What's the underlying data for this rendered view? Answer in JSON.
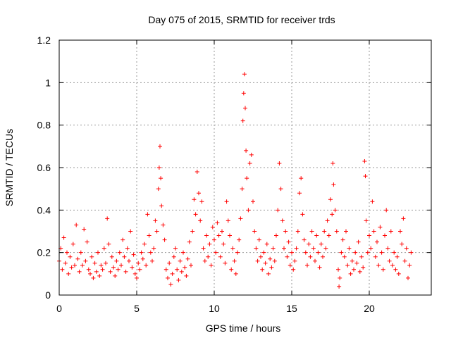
{
  "chart_data": {
    "type": "scatter",
    "title": "Day 075 of 2015, SRMTID for receiver trds",
    "xlabel": "GPS time / hours",
    "ylabel": "SRMTID / TECUs",
    "xlim": [
      0,
      24
    ],
    "ylim": [
      0,
      1.2
    ],
    "x_ticks": [
      0,
      5,
      10,
      15,
      20
    ],
    "x_tick_labels": [
      "0",
      "5",
      "10",
      "15",
      "20"
    ],
    "y_ticks": [
      0,
      0.2,
      0.4,
      0.6,
      0.8,
      1.0,
      1.2
    ],
    "y_tick_labels": [
      "0",
      "0.2",
      "0.4",
      "0.6",
      "0.8",
      "1",
      "1.2"
    ],
    "grid": true,
    "marker": "+",
    "color": "#ff0000",
    "series": [
      {
        "name": "SRMTID",
        "points": [
          [
            0.0,
            0.16
          ],
          [
            0.1,
            0.22
          ],
          [
            0.2,
            0.12
          ],
          [
            0.3,
            0.27
          ],
          [
            0.4,
            0.15
          ],
          [
            0.5,
            0.2
          ],
          [
            0.6,
            0.1
          ],
          [
            0.7,
            0.18
          ],
          [
            0.8,
            0.13
          ],
          [
            0.9,
            0.24
          ],
          [
            1.0,
            0.14
          ],
          [
            1.1,
            0.33
          ],
          [
            1.2,
            0.17
          ],
          [
            1.3,
            0.11
          ],
          [
            1.4,
            0.2
          ],
          [
            1.5,
            0.14
          ],
          [
            1.6,
            0.31
          ],
          [
            1.7,
            0.16
          ],
          [
            1.8,
            0.25
          ],
          [
            1.9,
            0.12
          ],
          [
            2.0,
            0.1
          ],
          [
            2.1,
            0.18
          ],
          [
            2.2,
            0.08
          ],
          [
            2.3,
            0.15
          ],
          [
            2.4,
            0.11
          ],
          [
            2.5,
            0.2
          ],
          [
            2.6,
            0.09
          ],
          [
            2.7,
            0.14
          ],
          [
            2.8,
            0.12
          ],
          [
            2.9,
            0.22
          ],
          [
            3.0,
            0.15
          ],
          [
            3.1,
            0.36
          ],
          [
            3.2,
            0.24
          ],
          [
            3.3,
            0.11
          ],
          [
            3.4,
            0.18
          ],
          [
            3.5,
            0.13
          ],
          [
            3.6,
            0.09
          ],
          [
            3.7,
            0.16
          ],
          [
            3.8,
            0.12
          ],
          [
            3.9,
            0.2
          ],
          [
            4.0,
            0.14
          ],
          [
            4.1,
            0.26
          ],
          [
            4.2,
            0.18
          ],
          [
            4.3,
            0.11
          ],
          [
            4.4,
            0.22
          ],
          [
            4.5,
            0.16
          ],
          [
            4.6,
            0.3
          ],
          [
            4.7,
            0.13
          ],
          [
            4.8,
            0.19
          ],
          [
            4.9,
            0.1
          ],
          [
            5.0,
            0.08
          ],
          [
            5.1,
            0.15
          ],
          [
            5.2,
            0.12
          ],
          [
            5.3,
            0.2
          ],
          [
            5.4,
            0.17
          ],
          [
            5.5,
            0.24
          ],
          [
            5.6,
            0.14
          ],
          [
            5.7,
            0.38
          ],
          [
            5.8,
            0.28
          ],
          [
            5.9,
            0.2
          ],
          [
            6.0,
            0.16
          ],
          [
            6.1,
            0.22
          ],
          [
            6.2,
            0.35
          ],
          [
            6.3,
            0.3
          ],
          [
            6.4,
            0.5
          ],
          [
            6.45,
            0.6
          ],
          [
            6.5,
            0.7
          ],
          [
            6.55,
            0.55
          ],
          [
            6.6,
            0.42
          ],
          [
            6.7,
            0.33
          ],
          [
            6.8,
            0.26
          ],
          [
            6.9,
            0.12
          ],
          [
            7.0,
            0.08
          ],
          [
            7.1,
            0.15
          ],
          [
            7.2,
            0.05
          ],
          [
            7.3,
            0.1
          ],
          [
            7.4,
            0.18
          ],
          [
            7.5,
            0.22
          ],
          [
            7.6,
            0.12
          ],
          [
            7.7,
            0.07
          ],
          [
            7.8,
            0.16
          ],
          [
            7.9,
            0.11
          ],
          [
            8.0,
            0.2
          ],
          [
            8.1,
            0.13
          ],
          [
            8.2,
            0.09
          ],
          [
            8.3,
            0.17
          ],
          [
            8.4,
            0.25
          ],
          [
            8.5,
            0.14
          ],
          [
            8.6,
            0.3
          ],
          [
            8.7,
            0.45
          ],
          [
            8.8,
            0.38
          ],
          [
            8.9,
            0.58
          ],
          [
            9.0,
            0.48
          ],
          [
            9.1,
            0.35
          ],
          [
            9.2,
            0.44
          ],
          [
            9.3,
            0.22
          ],
          [
            9.4,
            0.16
          ],
          [
            9.5,
            0.28
          ],
          [
            9.6,
            0.18
          ],
          [
            9.7,
            0.24
          ],
          [
            9.8,
            0.14
          ],
          [
            9.9,
            0.32
          ],
          [
            10.0,
            0.26
          ],
          [
            10.1,
            0.2
          ],
          [
            10.2,
            0.34
          ],
          [
            10.3,
            0.28
          ],
          [
            10.4,
            0.18
          ],
          [
            10.5,
            0.3
          ],
          [
            10.6,
            0.24
          ],
          [
            10.7,
            0.15
          ],
          [
            10.8,
            0.44
          ],
          [
            10.9,
            0.35
          ],
          [
            11.0,
            0.28
          ],
          [
            11.1,
            0.12
          ],
          [
            11.2,
            0.22
          ],
          [
            11.3,
            0.16
          ],
          [
            11.4,
            0.1
          ],
          [
            11.5,
            0.2
          ],
          [
            11.6,
            0.26
          ],
          [
            11.7,
            0.36
          ],
          [
            11.8,
            0.5
          ],
          [
            11.85,
            0.82
          ],
          [
            11.9,
            0.95
          ],
          [
            11.95,
            1.04
          ],
          [
            12.0,
            0.88
          ],
          [
            12.05,
            0.68
          ],
          [
            12.1,
            0.55
          ],
          [
            12.2,
            0.4
          ],
          [
            12.3,
            0.62
          ],
          [
            12.4,
            0.66
          ],
          [
            12.5,
            0.44
          ],
          [
            12.6,
            0.3
          ],
          [
            12.7,
            0.22
          ],
          [
            12.8,
            0.16
          ],
          [
            12.9,
            0.26
          ],
          [
            13.0,
            0.18
          ],
          [
            13.1,
            0.12
          ],
          [
            13.2,
            0.2
          ],
          [
            13.3,
            0.15
          ],
          [
            13.4,
            0.24
          ],
          [
            13.5,
            0.1
          ],
          [
            13.6,
            0.17
          ],
          [
            13.7,
            0.13
          ],
          [
            13.8,
            0.22
          ],
          [
            13.9,
            0.16
          ],
          [
            14.0,
            0.28
          ],
          [
            14.1,
            0.4
          ],
          [
            14.2,
            0.62
          ],
          [
            14.3,
            0.5
          ],
          [
            14.4,
            0.35
          ],
          [
            14.5,
            0.22
          ],
          [
            14.6,
            0.3
          ],
          [
            14.7,
            0.18
          ],
          [
            14.8,
            0.25
          ],
          [
            14.9,
            0.14
          ],
          [
            15.0,
            0.2
          ],
          [
            15.1,
            0.12
          ],
          [
            15.2,
            0.16
          ],
          [
            15.3,
            0.22
          ],
          [
            15.4,
            0.3
          ],
          [
            15.5,
            0.48
          ],
          [
            15.6,
            0.55
          ],
          [
            15.7,
            0.38
          ],
          [
            15.8,
            0.26
          ],
          [
            15.9,
            0.2
          ],
          [
            16.0,
            0.14
          ],
          [
            16.1,
            0.24
          ],
          [
            16.2,
            0.18
          ],
          [
            16.3,
            0.3
          ],
          [
            16.4,
            0.22
          ],
          [
            16.5,
            0.16
          ],
          [
            16.6,
            0.28
          ],
          [
            16.7,
            0.2
          ],
          [
            16.8,
            0.13
          ],
          [
            16.9,
            0.24
          ],
          [
            17.0,
            0.18
          ],
          [
            17.1,
            0.3
          ],
          [
            17.2,
            0.22
          ],
          [
            17.3,
            0.35
          ],
          [
            17.4,
            0.28
          ],
          [
            17.5,
            0.45
          ],
          [
            17.6,
            0.38
          ],
          [
            17.65,
            0.62
          ],
          [
            17.7,
            0.52
          ],
          [
            17.8,
            0.4
          ],
          [
            17.9,
            0.3
          ],
          [
            18.0,
            0.12
          ],
          [
            18.05,
            0.04
          ],
          [
            18.1,
            0.08
          ],
          [
            18.2,
            0.2
          ],
          [
            18.3,
            0.26
          ],
          [
            18.4,
            0.18
          ],
          [
            18.5,
            0.3
          ],
          [
            18.6,
            0.14
          ],
          [
            18.7,
            0.22
          ],
          [
            18.8,
            0.1
          ],
          [
            18.9,
            0.16
          ],
          [
            19.0,
            0.12
          ],
          [
            19.1,
            0.2
          ],
          [
            19.2,
            0.15
          ],
          [
            19.3,
            0.25
          ],
          [
            19.4,
            0.11
          ],
          [
            19.5,
            0.18
          ],
          [
            19.6,
            0.13
          ],
          [
            19.7,
            0.63
          ],
          [
            19.75,
            0.56
          ],
          [
            19.8,
            0.35
          ],
          [
            19.9,
            0.2
          ],
          [
            20.0,
            0.28
          ],
          [
            20.1,
            0.22
          ],
          [
            20.2,
            0.44
          ],
          [
            20.3,
            0.3
          ],
          [
            20.4,
            0.18
          ],
          [
            20.5,
            0.25
          ],
          [
            20.6,
            0.14
          ],
          [
            20.7,
            0.32
          ],
          [
            20.8,
            0.2
          ],
          [
            20.9,
            0.12
          ],
          [
            21.0,
            0.28
          ],
          [
            21.1,
            0.4
          ],
          [
            21.2,
            0.22
          ],
          [
            21.3,
            0.16
          ],
          [
            21.4,
            0.3
          ],
          [
            21.5,
            0.14
          ],
          [
            21.6,
            0.2
          ],
          [
            21.7,
            0.12
          ],
          [
            21.8,
            0.18
          ],
          [
            21.9,
            0.1
          ],
          [
            22.0,
            0.3
          ],
          [
            22.1,
            0.24
          ],
          [
            22.2,
            0.36
          ],
          [
            22.3,
            0.16
          ],
          [
            22.4,
            0.22
          ],
          [
            22.5,
            0.08
          ],
          [
            22.6,
            0.14
          ],
          [
            22.7,
            0.2
          ]
        ]
      }
    ]
  }
}
